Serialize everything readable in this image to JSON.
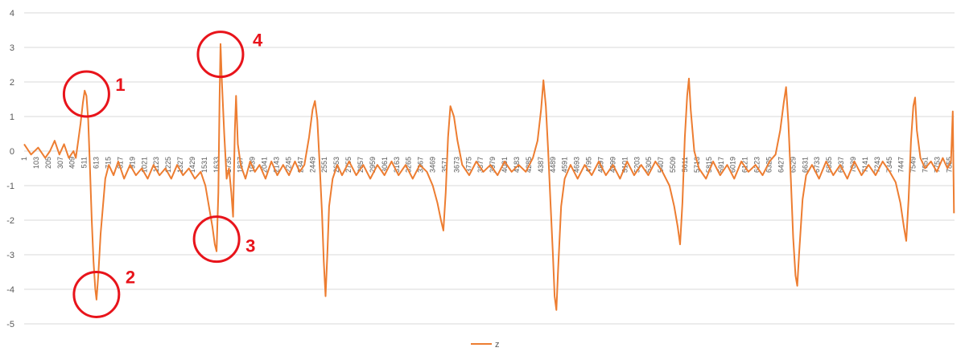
{
  "chart_data": {
    "type": "line",
    "title": "",
    "xlabel": "",
    "ylabel": "",
    "ylim": [
      -5,
      4
    ],
    "yticks": [
      4,
      3,
      2,
      1,
      0,
      -1,
      -2,
      -3,
      -4,
      -5
    ],
    "xticks": [
      "1",
      "103",
      "205",
      "307",
      "409",
      "511",
      "613",
      "715",
      "817",
      "919",
      "1021",
      "1123",
      "1225",
      "1327",
      "1429",
      "1531",
      "1633",
      "1735",
      "1837",
      "1939",
      "2041",
      "2143",
      "2245",
      "2347",
      "2449",
      "2551",
      "2653",
      "2755",
      "2857",
      "2959",
      "3061",
      "3163",
      "3265",
      "3367",
      "3469",
      "3571",
      "3673",
      "3775",
      "3877",
      "3979",
      "4081",
      "4183",
      "4285",
      "4387",
      "4489",
      "4591",
      "4693",
      "4795",
      "4897",
      "4999",
      "5101",
      "5203",
      "5305",
      "5407",
      "5509",
      "5611",
      "5713",
      "5815",
      "5917",
      "6019",
      "6121",
      "6223",
      "6325",
      "6427",
      "6529",
      "6631",
      "6733",
      "6835",
      "6937",
      "7039",
      "7141",
      "7243",
      "7345",
      "7447",
      "7549",
      "7651",
      "7753",
      "7855"
    ],
    "xrange": [
      1,
      7900
    ],
    "grid": true,
    "legend_position": "bottom",
    "series": [
      {
        "name": "z",
        "color": "#ed7d31",
        "points": [
          [
            1,
            0.2
          ],
          [
            60,
            -0.1
          ],
          [
            120,
            0.1
          ],
          [
            180,
            -0.2
          ],
          [
            220,
            0.0
          ],
          [
            260,
            0.3
          ],
          [
            300,
            -0.1
          ],
          [
            340,
            0.2
          ],
          [
            380,
            -0.2
          ],
          [
            420,
            0.0
          ],
          [
            440,
            -0.2
          ],
          [
            460,
            0.3
          ],
          [
            480,
            0.8
          ],
          [
            500,
            1.4
          ],
          [
            515,
            1.75
          ],
          [
            530,
            1.6
          ],
          [
            545,
            0.9
          ],
          [
            560,
            -0.5
          ],
          [
            575,
            -2.0
          ],
          [
            590,
            -3.2
          ],
          [
            605,
            -4.0
          ],
          [
            615,
            -4.3
          ],
          [
            630,
            -3.6
          ],
          [
            650,
            -2.4
          ],
          [
            670,
            -1.6
          ],
          [
            690,
            -0.8
          ],
          [
            720,
            -0.4
          ],
          [
            760,
            -0.7
          ],
          [
            800,
            -0.3
          ],
          [
            850,
            -0.8
          ],
          [
            900,
            -0.4
          ],
          [
            950,
            -0.7
          ],
          [
            1000,
            -0.5
          ],
          [
            1050,
            -0.8
          ],
          [
            1100,
            -0.4
          ],
          [
            1150,
            -0.7
          ],
          [
            1200,
            -0.5
          ],
          [
            1250,
            -0.8
          ],
          [
            1300,
            -0.4
          ],
          [
            1350,
            -0.7
          ],
          [
            1400,
            -0.5
          ],
          [
            1450,
            -0.8
          ],
          [
            1500,
            -0.6
          ],
          [
            1540,
            -1.0
          ],
          [
            1570,
            -1.6
          ],
          [
            1600,
            -2.2
          ],
          [
            1620,
            -2.7
          ],
          [
            1635,
            -2.9
          ],
          [
            1650,
            -1.2
          ],
          [
            1660,
            1.5
          ],
          [
            1668,
            3.1
          ],
          [
            1680,
            2.0
          ],
          [
            1700,
            0.5
          ],
          [
            1720,
            -0.8
          ],
          [
            1740,
            -0.5
          ],
          [
            1760,
            -1.2
          ],
          [
            1775,
            -1.9
          ],
          [
            1790,
            0.6
          ],
          [
            1800,
            1.6
          ],
          [
            1815,
            0.2
          ],
          [
            1840,
            -0.4
          ],
          [
            1880,
            -0.8
          ],
          [
            1920,
            -0.3
          ],
          [
            1960,
            -0.6
          ],
          [
            2000,
            -0.4
          ],
          [
            2050,
            -0.8
          ],
          [
            2100,
            -0.3
          ],
          [
            2150,
            -0.7
          ],
          [
            2200,
            -0.4
          ],
          [
            2250,
            -0.7
          ],
          [
            2300,
            -0.3
          ],
          [
            2340,
            -0.6
          ],
          [
            2380,
            -0.4
          ],
          [
            2420,
            0.4
          ],
          [
            2450,
            1.2
          ],
          [
            2470,
            1.45
          ],
          [
            2490,
            0.9
          ],
          [
            2510,
            -0.4
          ],
          [
            2530,
            -1.8
          ],
          [
            2545,
            -3.2
          ],
          [
            2560,
            -4.2
          ],
          [
            2575,
            -3.0
          ],
          [
            2590,
            -1.6
          ],
          [
            2620,
            -0.8
          ],
          [
            2660,
            -0.4
          ],
          [
            2700,
            -0.7
          ],
          [
            2760,
            -0.3
          ],
          [
            2820,
            -0.7
          ],
          [
            2880,
            -0.4
          ],
          [
            2940,
            -0.8
          ],
          [
            3000,
            -0.4
          ],
          [
            3060,
            -0.7
          ],
          [
            3120,
            -0.3
          ],
          [
            3180,
            -0.7
          ],
          [
            3240,
            -0.4
          ],
          [
            3300,
            -0.8
          ],
          [
            3360,
            -0.4
          ],
          [
            3420,
            -0.6
          ],
          [
            3470,
            -1.0
          ],
          [
            3510,
            -1.5
          ],
          [
            3540,
            -2.0
          ],
          [
            3560,
            -2.3
          ],
          [
            3580,
            -1.2
          ],
          [
            3600,
            0.4
          ],
          [
            3620,
            1.3
          ],
          [
            3650,
            1.0
          ],
          [
            3680,
            0.3
          ],
          [
            3720,
            -0.4
          ],
          [
            3780,
            -0.7
          ],
          [
            3840,
            -0.3
          ],
          [
            3900,
            -0.6
          ],
          [
            3960,
            -0.4
          ],
          [
            4020,
            -0.7
          ],
          [
            4080,
            -0.3
          ],
          [
            4140,
            -0.6
          ],
          [
            4200,
            -0.4
          ],
          [
            4260,
            -0.6
          ],
          [
            4320,
            -0.2
          ],
          [
            4360,
            0.3
          ],
          [
            4390,
            1.2
          ],
          [
            4410,
            2.05
          ],
          [
            4430,
            1.3
          ],
          [
            4450,
            0.0
          ],
          [
            4470,
            -1.5
          ],
          [
            4490,
            -3.0
          ],
          [
            4505,
            -4.2
          ],
          [
            4520,
            -4.6
          ],
          [
            4535,
            -3.4
          ],
          [
            4560,
            -1.6
          ],
          [
            4590,
            -0.8
          ],
          [
            4640,
            -0.4
          ],
          [
            4700,
            -0.8
          ],
          [
            4760,
            -0.4
          ],
          [
            4820,
            -0.7
          ],
          [
            4880,
            -0.3
          ],
          [
            4940,
            -0.7
          ],
          [
            5000,
            -0.4
          ],
          [
            5060,
            -0.8
          ],
          [
            5120,
            -0.3
          ],
          [
            5180,
            -0.7
          ],
          [
            5240,
            -0.4
          ],
          [
            5300,
            -0.7
          ],
          [
            5360,
            -0.3
          ],
          [
            5420,
            -0.6
          ],
          [
            5480,
            -1.0
          ],
          [
            5520,
            -1.6
          ],
          [
            5550,
            -2.2
          ],
          [
            5570,
            -2.7
          ],
          [
            5590,
            -1.5
          ],
          [
            5610,
            0.4
          ],
          [
            5630,
            1.6
          ],
          [
            5645,
            2.1
          ],
          [
            5660,
            1.2
          ],
          [
            5690,
            0.0
          ],
          [
            5730,
            -0.5
          ],
          [
            5790,
            -0.8
          ],
          [
            5850,
            -0.3
          ],
          [
            5910,
            -0.7
          ],
          [
            5970,
            -0.4
          ],
          [
            6030,
            -0.8
          ],
          [
            6090,
            -0.3
          ],
          [
            6150,
            -0.6
          ],
          [
            6210,
            -0.4
          ],
          [
            6270,
            -0.7
          ],
          [
            6330,
            -0.3
          ],
          [
            6380,
            -0.1
          ],
          [
            6420,
            0.6
          ],
          [
            6450,
            1.4
          ],
          [
            6470,
            1.85
          ],
          [
            6490,
            0.8
          ],
          [
            6510,
            -0.8
          ],
          [
            6530,
            -2.5
          ],
          [
            6550,
            -3.6
          ],
          [
            6565,
            -3.9
          ],
          [
            6580,
            -3.0
          ],
          [
            6610,
            -1.4
          ],
          [
            6640,
            -0.7
          ],
          [
            6690,
            -0.4
          ],
          [
            6750,
            -0.8
          ],
          [
            6810,
            -0.3
          ],
          [
            6870,
            -0.7
          ],
          [
            6930,
            -0.4
          ],
          [
            6990,
            -0.8
          ],
          [
            7050,
            -0.3
          ],
          [
            7110,
            -0.7
          ],
          [
            7170,
            -0.4
          ],
          [
            7230,
            -0.7
          ],
          [
            7290,
            -0.3
          ],
          [
            7350,
            -0.6
          ],
          [
            7400,
            -0.9
          ],
          [
            7440,
            -1.5
          ],
          [
            7470,
            -2.2
          ],
          [
            7490,
            -2.6
          ],
          [
            7510,
            -1.4
          ],
          [
            7530,
            0.3
          ],
          [
            7550,
            1.3
          ],
          [
            7565,
            1.55
          ],
          [
            7580,
            0.6
          ],
          [
            7610,
            -0.2
          ],
          [
            7650,
            -0.5
          ],
          [
            7700,
            -0.3
          ],
          [
            7750,
            -0.6
          ],
          [
            7800,
            -0.2
          ],
          [
            7840,
            -0.5
          ],
          [
            7870,
            -0.3
          ],
          [
            7885,
            1.15
          ],
          [
            7895,
            -1.8
          ]
        ]
      }
    ],
    "annotations": [
      {
        "label": "1",
        "cx_val": 530,
        "cy_val": 1.65
      },
      {
        "label": "2",
        "cx_val": 615,
        "cy_val": -4.15
      },
      {
        "label": "3",
        "cx_val": 1635,
        "cy_val": -2.55
      },
      {
        "label": "4",
        "cx_val": 1668,
        "cy_val": 2.8
      }
    ]
  }
}
